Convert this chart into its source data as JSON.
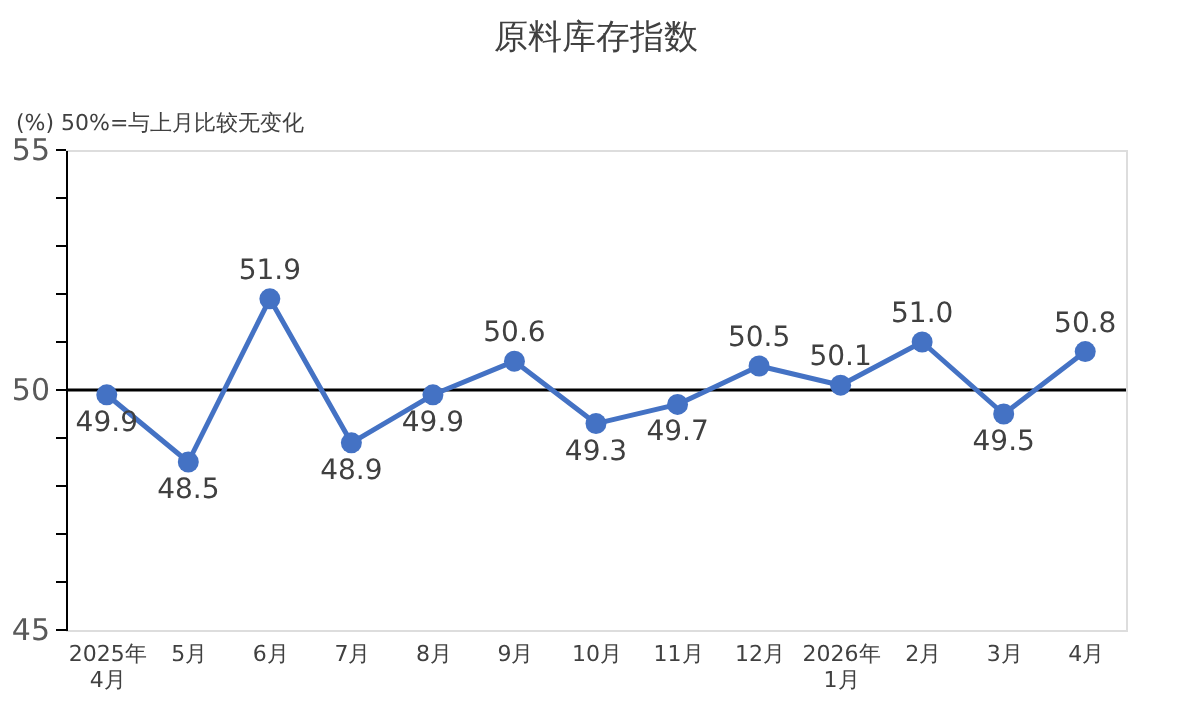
{
  "chart_data": {
    "type": "line",
    "title": "原料库存指数",
    "annotations": [
      "(%)  50%=与上月比较无变化"
    ],
    "categories": [
      "2025年\n4月",
      "5月",
      "6月",
      "7月",
      "8月",
      "9月",
      "10月",
      "11月",
      "12月",
      "2026年\n1月",
      "2月",
      "3月",
      "4月"
    ],
    "series": [
      {
        "color": "#4472c4",
        "values": [
          49.9,
          48.5,
          51.9,
          48.9,
          49.9,
          50.6,
          49.3,
          49.7,
          50.5,
          50.1,
          51.0,
          49.5,
          50.8
        ],
        "value_labels": [
          "49.9",
          "48.5",
          "51.9",
          "48.9",
          "49.9",
          "50.6",
          "49.3",
          "49.7",
          "50.5",
          "50.1",
          "51.0",
          "49.5",
          "50.8"
        ]
      }
    ],
    "ylim": [
      45,
      55
    ],
    "yticks": [
      45,
      {
        "value": 46,
        "label": null
      },
      {
        "value": 47,
        "label": null
      },
      {
        "value": 48,
        "label": null
      },
      {
        "value": 49,
        "label": null
      },
      50,
      {
        "value": 51,
        "label": null
      },
      {
        "value": 52,
        "label": null
      },
      {
        "value": 53,
        "label": null
      },
      {
        "value": 54,
        "label": null
      },
      55
    ],
    "ref_lines": [
      {
        "axis": "y",
        "value": 50,
        "color": "#000000"
      }
    ],
    "grid": false,
    "marker": "circle",
    "line_style": "solid"
  }
}
